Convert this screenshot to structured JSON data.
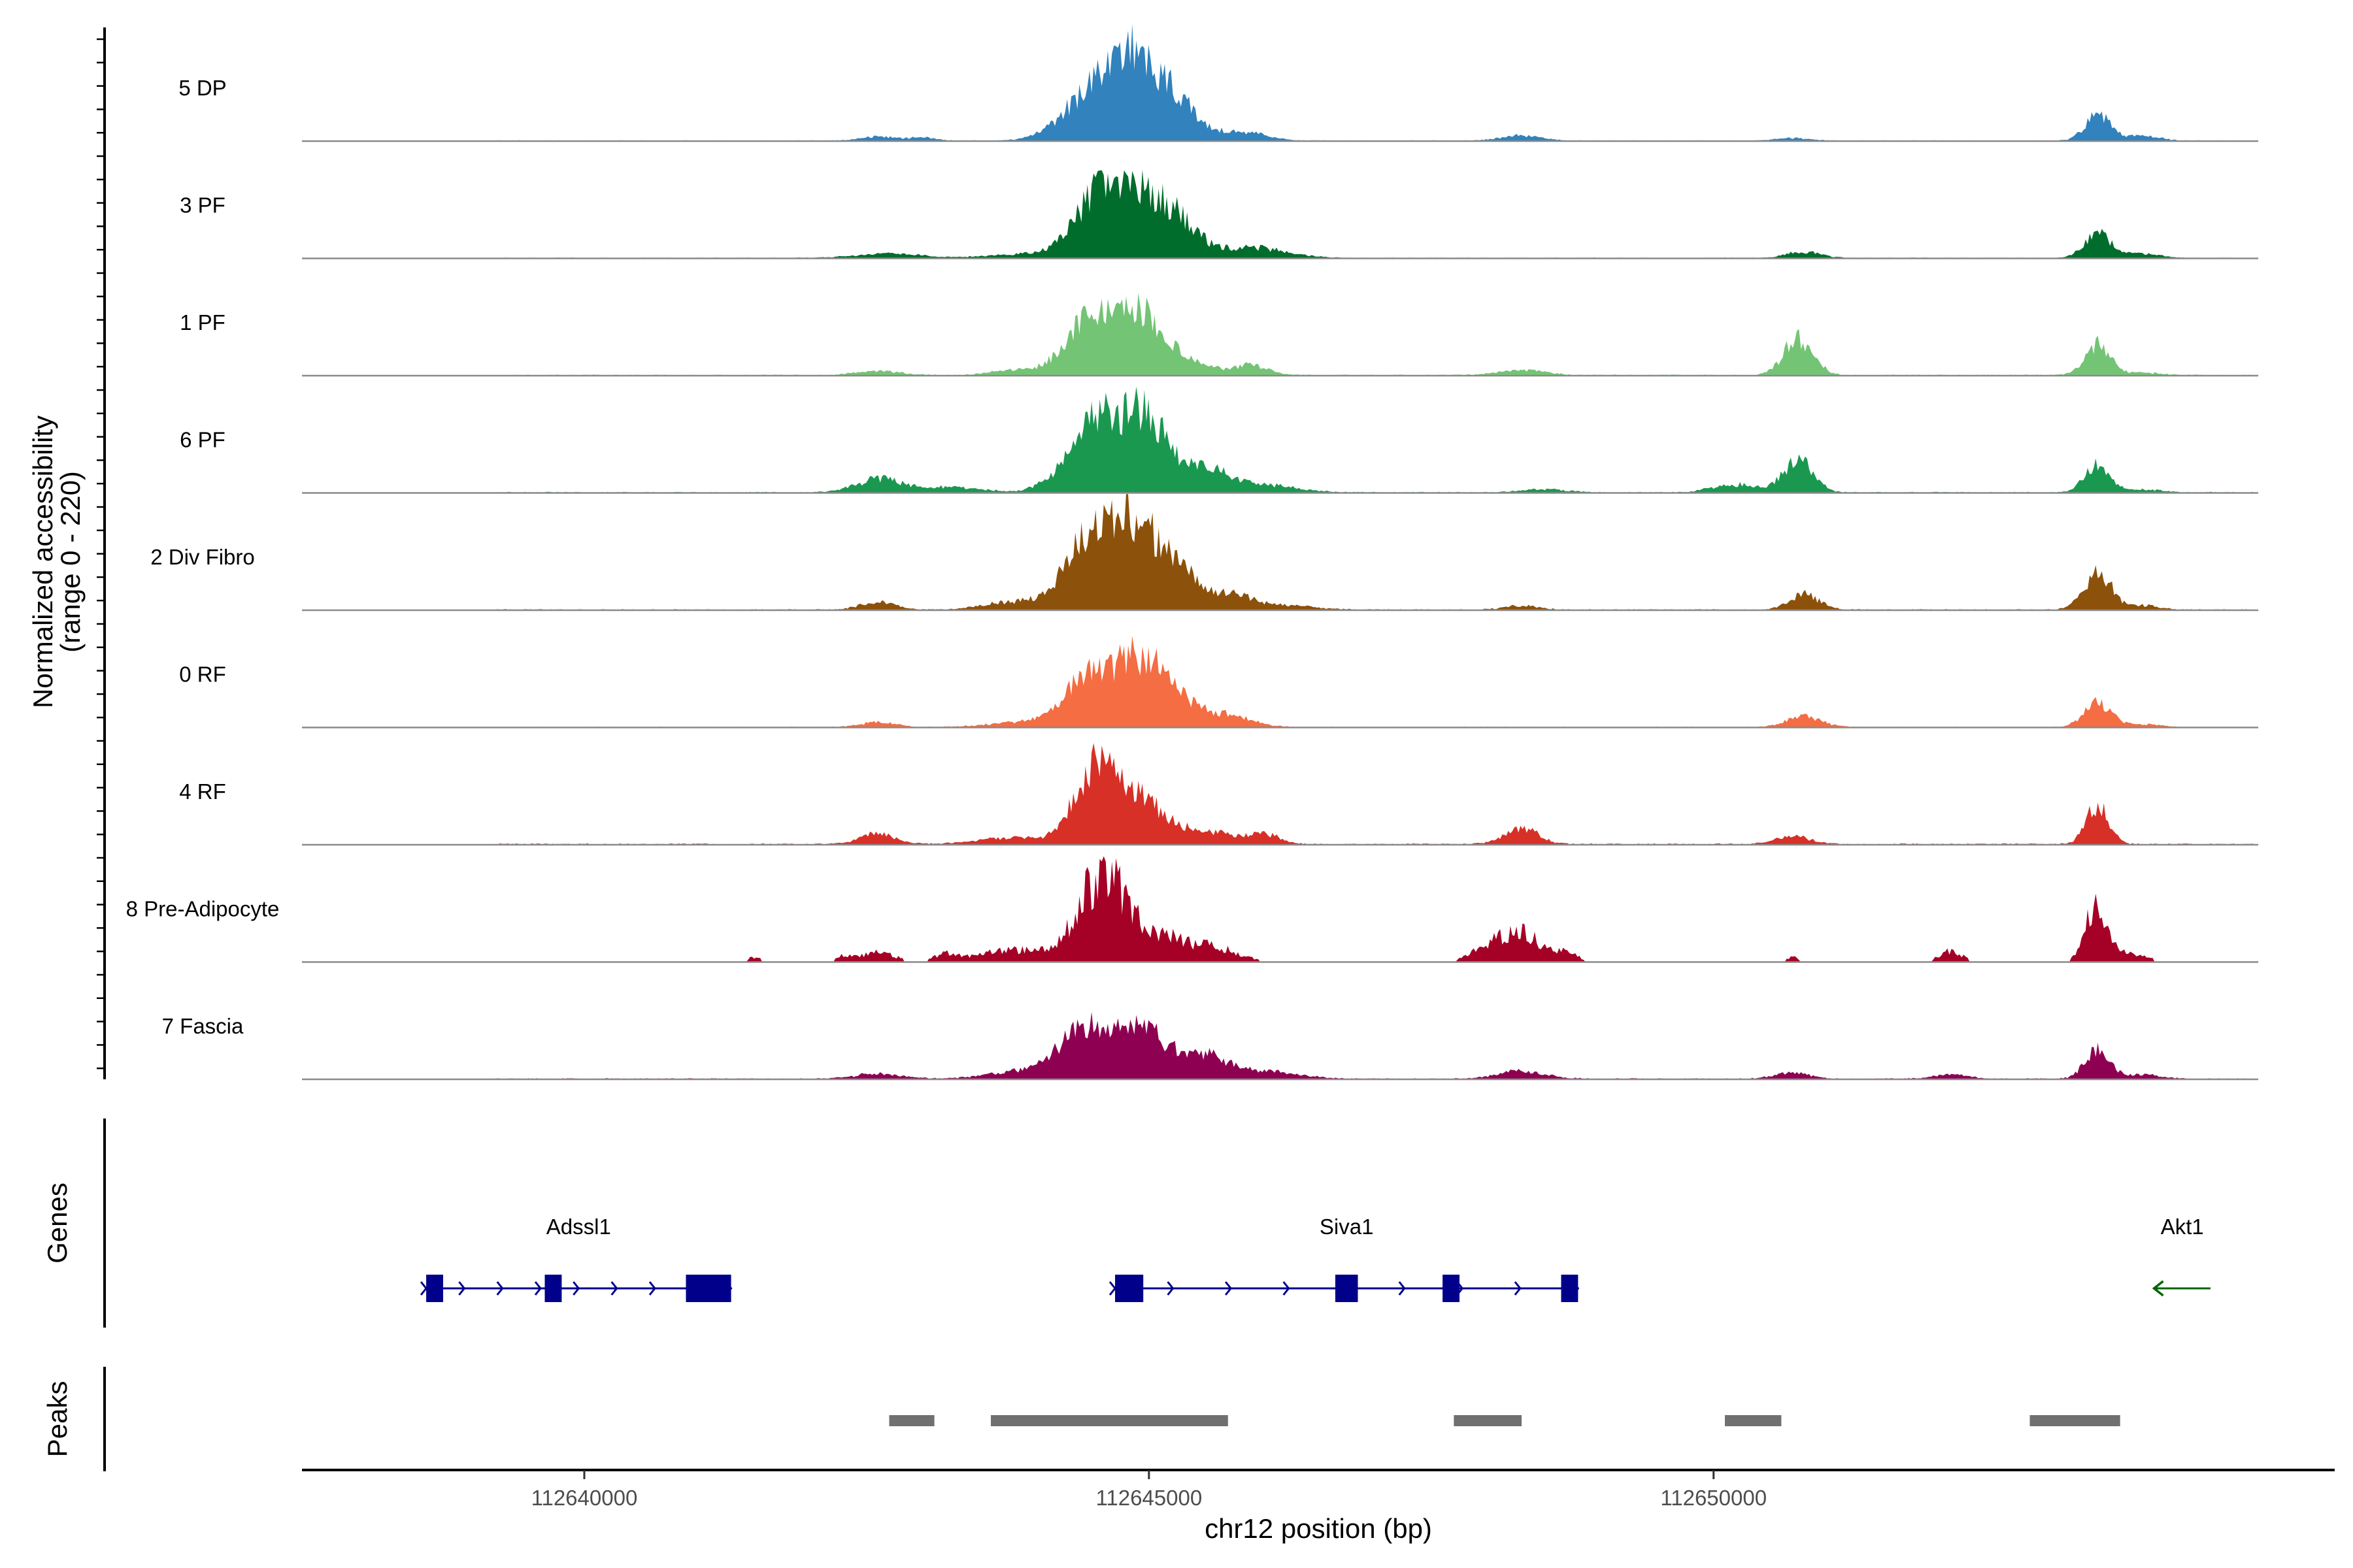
{
  "chart_data": {
    "type": "area",
    "chromosome": "chr12",
    "region": [
      112637500,
      112655500
    ],
    "ylabel_line1": "Normalized accessibility",
    "ylabel_line2": "(range 0 - 220)",
    "y_range": [
      0,
      220
    ],
    "xlabel": "chr12 position (bp)",
    "x_ticks": [
      112640000,
      112645000,
      112650000
    ],
    "x_tick_labels": [
      "112640000",
      "112645000",
      "112650000"
    ],
    "tracks": [
      {
        "name": "5 DP",
        "color": "#3182bd",
        "peaks": [
          [
            112642600,
            8,
            150
          ],
          [
            112643000,
            6,
            120
          ],
          [
            112644500,
            85,
            260
          ],
          [
            112644900,
            150,
            230
          ],
          [
            112645300,
            45,
            160
          ],
          [
            112645800,
            18,
            220
          ],
          [
            112648300,
            10,
            180
          ],
          [
            112650700,
            5,
            150
          ],
          [
            112653400,
            50,
            110
          ],
          [
            112653800,
            10,
            150
          ]
        ],
        "noise": 1.5,
        "spiky": false
      },
      {
        "name": "3 PF",
        "color": "#006d2c",
        "peaks": [
          [
            112642700,
            8,
            300
          ],
          [
            112643900,
            8,
            300
          ],
          [
            112644500,
            90,
            200
          ],
          [
            112644900,
            130,
            240
          ],
          [
            112645300,
            45,
            170
          ],
          [
            112645900,
            20,
            300
          ],
          [
            112650800,
            12,
            150
          ],
          [
            112653400,
            45,
            120
          ],
          [
            112653800,
            8,
            150
          ]
        ],
        "noise": 1.5,
        "spiky": false
      },
      {
        "name": "1 PF",
        "color": "#74c476",
        "peaks": [
          [
            112642600,
            8,
            200
          ],
          [
            112643800,
            10,
            200
          ],
          [
            112644500,
            120,
            220
          ],
          [
            112644950,
            110,
            200
          ],
          [
            112645400,
            25,
            160
          ],
          [
            112645900,
            20,
            150
          ],
          [
            112648300,
            10,
            200
          ],
          [
            112650750,
            70,
            130
          ],
          [
            112653400,
            60,
            110
          ],
          [
            112653800,
            5,
            150
          ]
        ],
        "noise": 2,
        "spiky": false
      },
      {
        "name": "6 PF",
        "color": "#1a9850",
        "peaks": [
          [
            112642600,
            25,
            200
          ],
          [
            112643200,
            10,
            300
          ],
          [
            112644300,
            40,
            200
          ],
          [
            112644550,
            100,
            180
          ],
          [
            112644950,
            150,
            220
          ],
          [
            112645500,
            40,
            200
          ],
          [
            112646000,
            15,
            300
          ],
          [
            112648500,
            6,
            200
          ],
          [
            112650200,
            15,
            200
          ],
          [
            112650750,
            60,
            130
          ],
          [
            112653400,
            55,
            110
          ],
          [
            112653800,
            6,
            150
          ]
        ],
        "noise": 2,
        "spiky": false
      },
      {
        "name": "2 Div Fibro",
        "color": "#8c510a",
        "peaks": [
          [
            112642600,
            15,
            150
          ],
          [
            112643800,
            15,
            250
          ],
          [
            112644400,
            100,
            200
          ],
          [
            112644800,
            150,
            220
          ],
          [
            112645200,
            90,
            180
          ],
          [
            112645700,
            30,
            200
          ],
          [
            112646200,
            8,
            250
          ],
          [
            112648300,
            8,
            150
          ],
          [
            112650800,
            30,
            130
          ],
          [
            112653400,
            70,
            120
          ],
          [
            112653800,
            8,
            150
          ]
        ],
        "noise": 2,
        "spiky": false
      },
      {
        "name": "0 RF",
        "color": "#f46d43",
        "peaks": [
          [
            112642600,
            10,
            150
          ],
          [
            112643900,
            10,
            300
          ],
          [
            112644500,
            100,
            220
          ],
          [
            112644950,
            120,
            200
          ],
          [
            112645300,
            35,
            160
          ],
          [
            112645700,
            25,
            200
          ],
          [
            112650800,
            20,
            150
          ],
          [
            112653400,
            45,
            120
          ],
          [
            112653800,
            6,
            150
          ]
        ],
        "noise": 1.5,
        "spiky": false
      },
      {
        "name": "4 RF",
        "color": "#d73027",
        "peaks": [
          [
            112642600,
            20,
            150
          ],
          [
            112643800,
            12,
            300
          ],
          [
            112644500,
            130,
            180
          ],
          [
            112644900,
            85,
            240
          ],
          [
            112645500,
            25,
            200
          ],
          [
            112646000,
            20,
            150
          ],
          [
            112648300,
            30,
            150
          ],
          [
            112650700,
            15,
            150
          ],
          [
            112653400,
            75,
            100
          ]
        ],
        "noise": 2.5,
        "spiky": false
      },
      {
        "name": "8 Pre-Adipocyte",
        "color": "#a50026",
        "peaks": [
          [
            112641500,
            10,
            60
          ],
          [
            112642300,
            12,
            60
          ],
          [
            112642600,
            20,
            150
          ],
          [
            112643200,
            15,
            100
          ],
          [
            112643800,
            25,
            300
          ],
          [
            112644600,
            180,
            220
          ],
          [
            112645100,
            40,
            160
          ],
          [
            112645500,
            35,
            250
          ],
          [
            112648000,
            30,
            150
          ],
          [
            112648300,
            60,
            160
          ],
          [
            112648700,
            20,
            100
          ],
          [
            112650700,
            10,
            60
          ],
          [
            112652100,
            22,
            100
          ],
          [
            112653400,
            120,
            100
          ],
          [
            112653700,
            15,
            150
          ]
        ],
        "noise": 0,
        "spiky": true
      },
      {
        "name": "7 Fascia",
        "color": "#8e0152",
        "peaks": [
          [
            112642600,
            10,
            200
          ],
          [
            112643900,
            15,
            300
          ],
          [
            112644400,
            80,
            200
          ],
          [
            112644900,
            100,
            250
          ],
          [
            112645500,
            40,
            200
          ],
          [
            112646000,
            15,
            300
          ],
          [
            112648300,
            15,
            200
          ],
          [
            112650700,
            12,
            150
          ],
          [
            112652100,
            8,
            150
          ],
          [
            112653400,
            55,
            110
          ],
          [
            112653800,
            8,
            150
          ]
        ],
        "noise": 2,
        "spiky": false
      }
    ],
    "genes_title": "Genes",
    "genes": [
      {
        "name": "Adssl1",
        "start": 112638600,
        "end": 112641300,
        "strand": "+",
        "color": "#00008b",
        "exons": [
          [
            112638600,
            112638750
          ],
          [
            112639650,
            112639800
          ],
          [
            112640900,
            112641300
          ]
        ]
      },
      {
        "name": "Siva1",
        "start": 112644700,
        "end": 112648800,
        "strand": "+",
        "color": "#00008b",
        "exons": [
          [
            112644700,
            112644950
          ],
          [
            112646650,
            112646850
          ],
          [
            112647600,
            112647750
          ],
          [
            112648650,
            112648800
          ]
        ]
      },
      {
        "name": "Akt1",
        "start": 112653900,
        "end": 112654400,
        "strand": "-",
        "color": "#006400",
        "exons": []
      }
    ],
    "peaks_title": "Peaks",
    "peak_regions": [
      [
        112642700,
        112643100
      ],
      [
        112643600,
        112645700
      ],
      [
        112647700,
        112648300
      ],
      [
        112650100,
        112650600
      ],
      [
        112652800,
        112653600
      ]
    ],
    "peak_color": "#707070"
  }
}
